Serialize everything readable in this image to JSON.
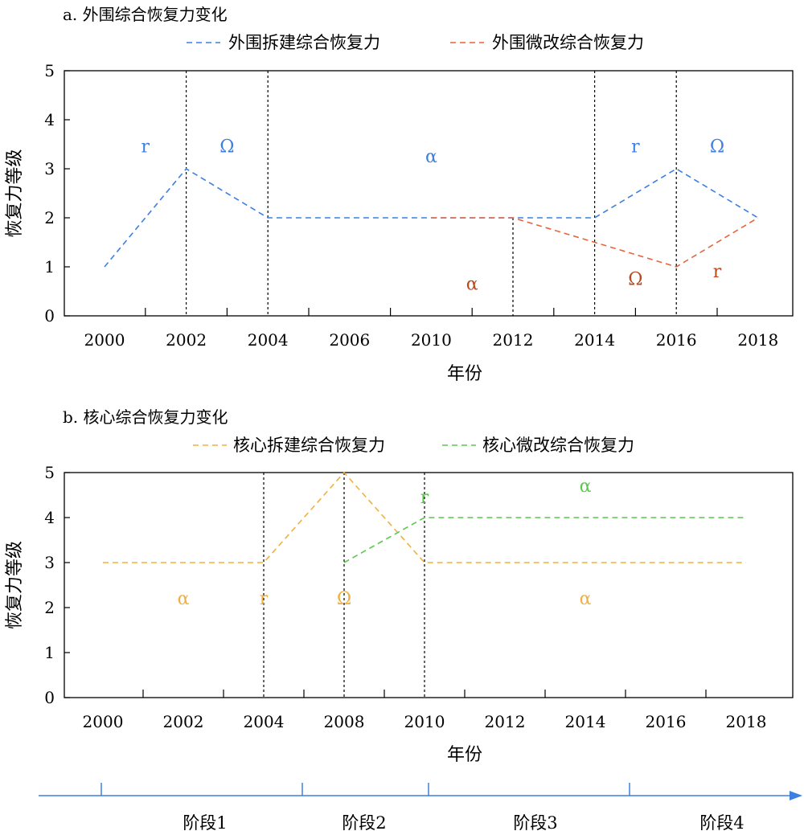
{
  "chart_data": [
    {
      "type": "line",
      "title": "a. 外围综合恢复力变化",
      "xlabel": "年份",
      "ylabel": "恢复力等级",
      "ylim": [
        0,
        5
      ],
      "yticks": [
        "0",
        "1",
        "2",
        "3",
        "4",
        "5"
      ],
      "categories": [
        "2000",
        "2002",
        "2004",
        "2006",
        "2010",
        "2012",
        "2014",
        "2016",
        "2018"
      ],
      "grid": false,
      "legend_position": "top",
      "series": [
        {
          "name": "外围拆建综合恢复力",
          "color": "#3d7fe0",
          "style": "dashed",
          "points": [
            [
              "2000",
              1
            ],
            [
              "2002",
              3
            ],
            [
              "2004",
              2
            ],
            [
              "2006",
              2
            ],
            [
              "2010",
              2
            ],
            [
              "2012",
              2
            ],
            [
              "2014",
              2
            ],
            [
              "2016",
              3
            ],
            [
              "2018",
              2
            ]
          ]
        },
        {
          "name": "外围微改综合恢复力",
          "color": "#e8643a",
          "style": "dashed",
          "points": [
            [
              "2010",
              2
            ],
            [
              "2012",
              2
            ],
            [
              "2016",
              1
            ],
            [
              "2018",
              2
            ]
          ]
        }
      ],
      "phase_dividers_at": [
        "2002",
        "2004",
        "2014",
        "2016",
        "2012"
      ],
      "annotations": [
        {
          "text": "r",
          "x": "2001",
          "y": 3.45,
          "color": "#3d7fe0"
        },
        {
          "text": "Ω",
          "x": "2003",
          "y": 3.45,
          "color": "#3d7fe0"
        },
        {
          "text": "α",
          "x": "2010",
          "y": 3.25,
          "color": "#3d7fe0"
        },
        {
          "text": "r",
          "x": "2015",
          "y": 3.45,
          "color": "#3d7fe0"
        },
        {
          "text": "Ω",
          "x": "2017",
          "y": 3.45,
          "color": "#3d7fe0"
        },
        {
          "text": "α",
          "x": "2011",
          "y": 0.65,
          "color": "#b84a1e"
        },
        {
          "text": "Ω",
          "x": "2015",
          "y": 0.75,
          "color": "#b84a1e"
        },
        {
          "text": "r",
          "x": "2017",
          "y": 0.9,
          "color": "#b84a1e"
        }
      ]
    },
    {
      "type": "line",
      "title": "b. 核心综合恢复力变化",
      "xlabel": "年份",
      "ylabel": "恢复力等级",
      "ylim": [
        0,
        5
      ],
      "yticks": [
        "0",
        "1",
        "2",
        "3",
        "4",
        "5"
      ],
      "categories": [
        "2000",
        "2002",
        "2004",
        "2008",
        "2010",
        "2012",
        "2014",
        "2016",
        "2018"
      ],
      "grid": false,
      "legend_position": "top",
      "series": [
        {
          "name": "核心拆建综合恢复力",
          "color": "#f0b040",
          "style": "dashed",
          "points": [
            [
              "2000",
              3
            ],
            [
              "2004",
              3
            ],
            [
              "2008",
              5
            ],
            [
              "2010",
              3
            ],
            [
              "2018",
              3
            ]
          ]
        },
        {
          "name": "核心微改综合恢复力",
          "color": "#5ac84a",
          "style": "dashed",
          "points": [
            [
              "2008",
              3
            ],
            [
              "2010",
              4
            ],
            [
              "2018",
              4
            ]
          ]
        }
      ],
      "phase_dividers_at": [
        "2004",
        "2008",
        "2010"
      ],
      "annotations": [
        {
          "text": "α",
          "x": "2002",
          "y": 2.2,
          "color": "#f0b040"
        },
        {
          "text": "r",
          "x": "2004",
          "y": 2.2,
          "color": "#f0b040"
        },
        {
          "text": "Ω",
          "x": "2008",
          "y": 2.2,
          "color": "#f0b040"
        },
        {
          "text": "α",
          "x": "2014",
          "y": 2.2,
          "color": "#f0b040"
        },
        {
          "text": "r",
          "x": "2010",
          "y": 4.45,
          "color": "#5ac84a"
        },
        {
          "text": "α",
          "x": "2014",
          "y": 4.7,
          "color": "#5ac84a"
        }
      ]
    }
  ],
  "timeline": {
    "color": "#3d7fe0",
    "stages": [
      "阶段1",
      "阶段2",
      "阶段3",
      "阶段4"
    ]
  }
}
